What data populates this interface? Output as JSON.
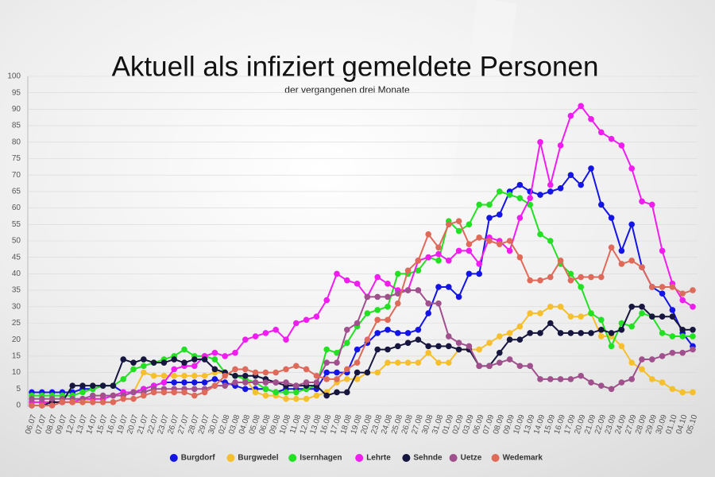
{
  "chart_data": {
    "type": "line",
    "title": "Aktuell als infiziert gemeldete Personen",
    "subtitle": "der vergangenen drei Monate",
    "categories": [
      "06.07",
      "07.07",
      "08.07",
      "09.07",
      "12.07",
      "13.07",
      "14.07",
      "15.07",
      "16.07",
      "19.07",
      "20.07",
      "21.07",
      "22.07",
      "23.07",
      "26.07",
      "27.07",
      "28.07",
      "29.07",
      "30.07",
      "02.08",
      "03.08",
      "04.08",
      "05.08",
      "06.08",
      "09.08",
      "10.08",
      "11.08",
      "12.08",
      "13.08",
      "16.08",
      "17.08",
      "18.08",
      "19.08",
      "20.08",
      "23.08",
      "24.08",
      "25.08",
      "26.08",
      "27.08",
      "30.08",
      "31.08",
      "01.09",
      "02.09",
      "03.09",
      "06.09",
      "07.09",
      "08.09",
      "09.09",
      "10.09",
      "13.09",
      "14.09",
      "15.09",
      "16.09",
      "17.09",
      "20.09",
      "21.09",
      "22.09",
      "23.09",
      "24.09",
      "27.09",
      "28.09",
      "29.09",
      "30.09",
      "01.10",
      "04.10",
      "05.10"
    ],
    "ylim": [
      0,
      100
    ],
    "yticks": [
      0,
      5,
      10,
      15,
      20,
      25,
      30,
      35,
      40,
      45,
      50,
      55,
      60,
      65,
      70,
      75,
      80,
      85,
      90,
      95,
      100
    ],
    "grid": true,
    "legend": "bottom",
    "series": [
      {
        "name": "Burgdorf",
        "color": "#1414e6",
        "values": [
          4,
          4,
          4,
          4,
          4,
          5,
          5,
          6,
          6,
          4,
          4,
          5,
          6,
          7,
          7,
          7,
          7,
          7,
          8,
          7,
          6,
          5,
          5,
          5,
          4,
          5,
          5,
          5,
          5,
          10,
          10,
          10,
          17,
          19,
          22,
          23,
          22,
          22,
          23,
          28,
          36,
          36,
          33,
          40,
          40,
          57,
          58,
          65,
          67,
          65,
          64,
          65,
          66,
          70,
          67,
          72,
          61,
          57,
          47,
          55,
          42,
          36,
          34,
          29,
          22,
          18
        ]
      },
      {
        "name": "Burgwedel",
        "color": "#f5c02c",
        "values": [
          1,
          1,
          1,
          1,
          1,
          1,
          2,
          2,
          3,
          4,
          4,
          10,
          9,
          9,
          9,
          9,
          9,
          9,
          10,
          10,
          9,
          8,
          4,
          3,
          3,
          2,
          2,
          2,
          3,
          4,
          7,
          8,
          8,
          10,
          10,
          13,
          13,
          13,
          13,
          16,
          13,
          13,
          17,
          17,
          17,
          19,
          21,
          22,
          24,
          28,
          28,
          30,
          30,
          27,
          27,
          28,
          21,
          21,
          18,
          13,
          11,
          8,
          7,
          5,
          4,
          4
        ]
      },
      {
        "name": "Isernhagen",
        "color": "#22e022",
        "values": [
          3,
          3,
          3,
          3,
          3,
          4,
          5,
          6,
          6,
          8,
          11,
          12,
          13,
          14,
          15,
          17,
          15,
          15,
          14,
          10,
          9,
          8,
          7,
          5,
          4,
          4,
          4,
          5,
          6,
          17,
          16,
          19,
          24,
          28,
          29,
          30,
          40,
          40,
          41,
          45,
          44,
          56,
          53,
          55,
          61,
          61,
          65,
          64,
          63,
          61,
          52,
          50,
          43,
          40,
          36,
          28,
          26,
          18,
          25,
          24,
          28,
          27,
          22,
          21,
          21,
          21
        ]
      },
      {
        "name": "Lehrte",
        "color": "#f01cf0",
        "values": [
          1,
          1,
          1,
          1,
          1,
          2,
          2,
          2,
          3,
          4,
          4,
          5,
          6,
          7,
          11,
          12,
          12,
          15,
          16,
          15,
          16,
          20,
          21,
          22,
          23,
          20,
          25,
          26,
          27,
          32,
          40,
          38,
          37,
          33,
          39,
          37,
          35,
          35,
          44,
          45,
          46,
          44,
          47,
          47,
          43,
          51,
          50,
          47,
          57,
          63,
          80,
          67,
          79,
          88,
          91,
          87,
          83,
          81,
          79,
          72,
          62,
          61,
          47,
          37,
          32,
          30
        ]
      },
      {
        "name": "Sehnde",
        "color": "#16163e",
        "values": [
          0,
          0,
          1,
          1,
          6,
          6,
          6,
          6,
          6,
          14,
          13,
          14,
          13,
          13,
          14,
          13,
          14,
          14,
          11,
          10,
          9,
          9,
          9,
          8,
          7,
          6,
          6,
          6,
          6,
          3,
          4,
          4,
          10,
          10,
          17,
          17,
          18,
          19,
          20,
          18,
          18,
          18,
          17,
          17,
          12,
          12,
          16,
          20,
          20,
          22,
          22,
          25,
          22,
          22,
          22,
          22,
          23,
          22,
          23,
          30,
          30,
          27,
          27,
          27,
          23,
          23
        ]
      },
      {
        "name": "Uetze",
        "color": "#a0508c",
        "values": [
          2,
          2,
          2,
          2,
          2,
          2,
          3,
          3,
          3,
          3,
          4,
          4,
          5,
          5,
          5,
          5,
          5,
          5,
          6,
          6,
          7,
          7,
          7,
          7,
          7,
          7,
          6,
          7,
          7,
          13,
          13,
          23,
          25,
          33,
          33,
          33,
          34,
          35,
          35,
          31,
          31,
          21,
          19,
          18,
          12,
          12,
          13,
          14,
          12,
          12,
          8,
          8,
          8,
          8,
          9,
          7,
          6,
          5,
          7,
          8,
          14,
          14,
          15,
          16,
          16,
          17
        ]
      },
      {
        "name": "Wedemark",
        "color": "#e06a5a",
        "values": [
          0,
          0,
          0,
          1,
          1,
          1,
          1,
          1,
          1,
          2,
          2,
          3,
          4,
          4,
          4,
          4,
          3,
          4,
          6,
          9,
          11,
          11,
          10,
          10,
          10,
          11,
          12,
          11,
          9,
          8,
          8,
          11,
          13,
          20,
          26,
          26,
          31,
          41,
          44,
          52,
          48,
          55,
          56,
          49,
          51,
          50,
          49,
          50,
          45,
          38,
          38,
          39,
          44,
          38,
          39,
          39,
          39,
          48,
          43,
          44,
          42,
          36,
          36,
          36,
          34,
          35
        ]
      }
    ]
  }
}
